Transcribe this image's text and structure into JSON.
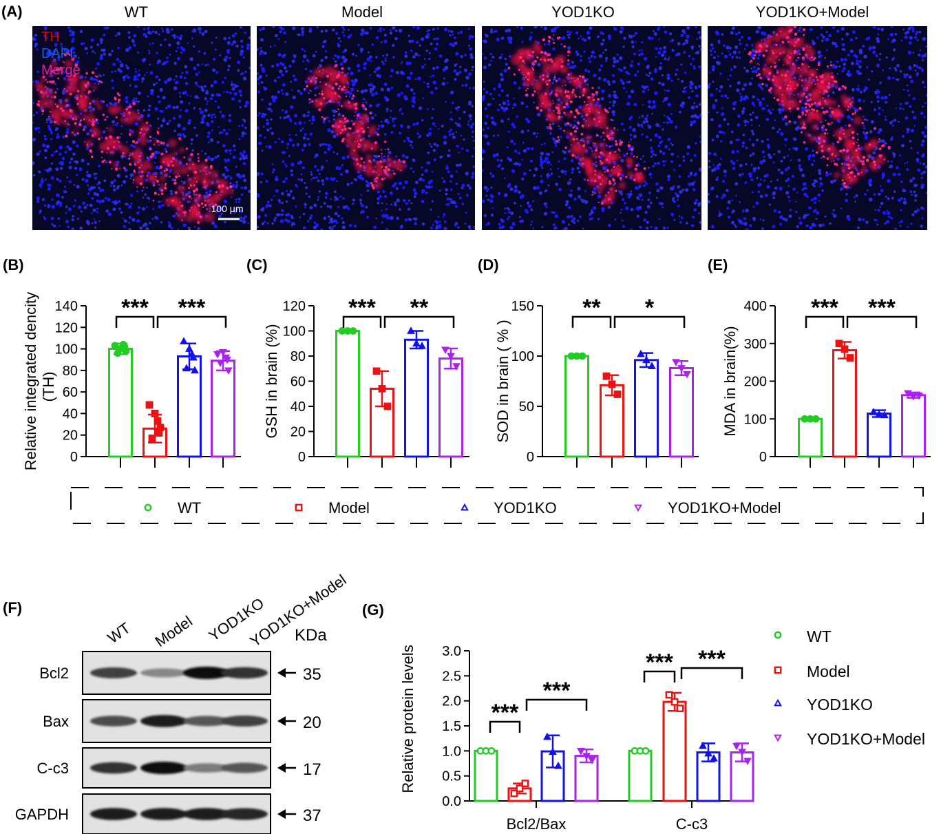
{
  "panel_labels": {
    "A": "(A)",
    "B": "(B)",
    "C": "(C)",
    "D": "(D)",
    "E": "(E)",
    "F": "(F)",
    "G": "(G)"
  },
  "groups": [
    "WT",
    "Model",
    "YOD1KO",
    "YOD1KO+Model"
  ],
  "colors": {
    "WT": "#22cc22",
    "Model": "#ee1111",
    "YOD1KO": "#1111ee",
    "YOD1KO+Model": "#aa22ee"
  },
  "micro": {
    "titles": [
      "WT",
      "Model",
      "YOD1KO",
      "YOD1KO+Model"
    ],
    "stain_labels": [
      "TH",
      "DAPI",
      "Merge"
    ],
    "stain_colors": [
      "#e00000",
      "#1060e0",
      "#e020a0"
    ],
    "scale_bar": "100 μm"
  },
  "legend": {
    "items": [
      {
        "label": "WT",
        "marker": "circle"
      },
      {
        "label": "Model",
        "marker": "square"
      },
      {
        "label": "YOD1KO",
        "marker": "triangle"
      },
      {
        "label": "YOD1KO+Model",
        "marker": "triangle-down"
      }
    ]
  },
  "western": {
    "lanes": [
      "WT",
      "Model",
      "YOD1KO",
      "YOD1KO+Model"
    ],
    "unit": "KDa",
    "bands": [
      {
        "name": "Bcl2",
        "kda": "35",
        "intensity": [
          0.8,
          0.5,
          1.0,
          0.85
        ]
      },
      {
        "name": "Bax",
        "kda": "20",
        "intensity": [
          0.75,
          0.95,
          0.7,
          0.8
        ]
      },
      {
        "name": "C-c3",
        "kda": "17",
        "intensity": [
          0.85,
          1.0,
          0.55,
          0.7
        ]
      },
      {
        "name": "GAPDH",
        "kda": "37",
        "intensity": [
          0.95,
          0.95,
          0.95,
          0.9
        ]
      }
    ]
  },
  "chart_data": [
    {
      "id": "B",
      "type": "bar",
      "ylabel": "Relative integrated dencity",
      "ylabel2": "(TH)",
      "ylim": [
        0,
        140
      ],
      "yticks": [
        "0",
        "20",
        "40",
        "60",
        "80",
        "100",
        "120",
        "140"
      ],
      "categories": [
        "WT",
        "Model",
        "YOD1KO",
        "YOD1KO+Model"
      ],
      "values": [
        100,
        26,
        93,
        89
      ],
      "errors": [
        5,
        13,
        12,
        9
      ],
      "points": [
        [
          103,
          100,
          98,
          96,
          104,
          102
        ],
        [
          48,
          40,
          27,
          17,
          33,
          22
        ],
        [
          107,
          100,
          80,
          82,
          95,
          92
        ],
        [
          95,
          97,
          80,
          87,
          92,
          90
        ]
      ],
      "significance": [
        {
          "from": 0,
          "to": 1,
          "label": "***"
        },
        {
          "from": 1,
          "to": 3,
          "label": "***"
        }
      ]
    },
    {
      "id": "C",
      "type": "bar",
      "ylabel": "GSH in brain (%)",
      "ylim": [
        0,
        120
      ],
      "yticks": [
        "0",
        "20",
        "40",
        "60",
        "80",
        "100",
        "120"
      ],
      "categories": [
        "WT",
        "Model",
        "YOD1KO",
        "YOD1KO+Model"
      ],
      "values": [
        100,
        54,
        93,
        78
      ],
      "errors": [
        0,
        14,
        7,
        8
      ],
      "points": [
        [
          100,
          100,
          100
        ],
        [
          68,
          54,
          40
        ],
        [
          100,
          90,
          88
        ],
        [
          85,
          80,
          72
        ]
      ],
      "significance": [
        {
          "from": 0,
          "to": 1,
          "label": "***"
        },
        {
          "from": 1,
          "to": 3,
          "label": "**"
        }
      ]
    },
    {
      "id": "D",
      "type": "bar",
      "ylabel": "SOD in brain ( % )",
      "ylim": [
        0,
        150
      ],
      "yticks": [
        "0",
        "50",
        "100",
        "150"
      ],
      "categories": [
        "WT",
        "Model",
        "YOD1KO",
        "YOD1KO+Model"
      ],
      "values": [
        100,
        71,
        96,
        88
      ],
      "errors": [
        0,
        10,
        7,
        7
      ],
      "points": [
        [
          100,
          100,
          100
        ],
        [
          80,
          72,
          62
        ],
        [
          102,
          96,
          90
        ],
        [
          94,
          88,
          82
        ]
      ],
      "significance": [
        {
          "from": 0,
          "to": 1,
          "label": "**"
        },
        {
          "from": 1,
          "to": 3,
          "label": "*"
        }
      ]
    },
    {
      "id": "E",
      "type": "bar",
      "ylabel": "MDA in brain(%)",
      "ylim": [
        0,
        400
      ],
      "yticks": [
        "0",
        "100",
        "200",
        "300",
        "400"
      ],
      "categories": [
        "WT",
        "Model",
        "YOD1KO",
        "YOD1KO+Model"
      ],
      "values": [
        100,
        282,
        114,
        163
      ],
      "errors": [
        0,
        22,
        9,
        7
      ],
      "points": [
        [
          100,
          100,
          100
        ],
        [
          300,
          285,
          262
        ],
        [
          118,
          112,
          110
        ],
        [
          168,
          160,
          162
        ]
      ],
      "significance": [
        {
          "from": 0,
          "to": 1,
          "label": "***"
        },
        {
          "from": 1,
          "to": 3,
          "label": "***"
        }
      ]
    },
    {
      "id": "G",
      "type": "bar",
      "ylabel": "Relative protein levels",
      "ylim": [
        0,
        3.0
      ],
      "yticks": [
        "0.0",
        "0.5",
        "1.0",
        "1.5",
        "2.0",
        "2.5",
        "3.0"
      ],
      "categories": [
        "Bcl2/Bax",
        "C-c3"
      ],
      "series": [
        {
          "name": "WT",
          "values": [
            1.0,
            1.0
          ],
          "errors": [
            0,
            0
          ],
          "points": [
            [
              1.0,
              1.0,
              1.0
            ],
            [
              1.0,
              1.0,
              1.0
            ]
          ]
        },
        {
          "name": "Model",
          "values": [
            0.25,
            1.98
          ],
          "errors": [
            0.1,
            0.18
          ],
          "points": [
            [
              0.15,
              0.25,
              0.35
            ],
            [
              2.12,
              1.98,
              1.85
            ]
          ]
        },
        {
          "name": "YOD1KO",
          "values": [
            0.99,
            0.97
          ],
          "errors": [
            0.32,
            0.18
          ],
          "points": [
            [
              1.28,
              0.98,
              0.7
            ],
            [
              1.1,
              0.95,
              0.85
            ]
          ]
        },
        {
          "name": "YOD1KO+Model",
          "values": [
            0.9,
            0.97
          ],
          "errors": [
            0.13,
            0.18
          ],
          "points": [
            [
              1.0,
              0.9,
              0.82
            ],
            [
              1.1,
              0.98,
              0.8
            ]
          ]
        }
      ],
      "significance": [
        {
          "category": 0,
          "from": 0,
          "to": 1,
          "label": "***"
        },
        {
          "category": 0,
          "from": 1,
          "to": 3,
          "label": "***"
        },
        {
          "category": 1,
          "from": 0,
          "to": 1,
          "label": "***"
        },
        {
          "category": 1,
          "from": 1,
          "to": 3,
          "label": "***"
        }
      ]
    }
  ]
}
